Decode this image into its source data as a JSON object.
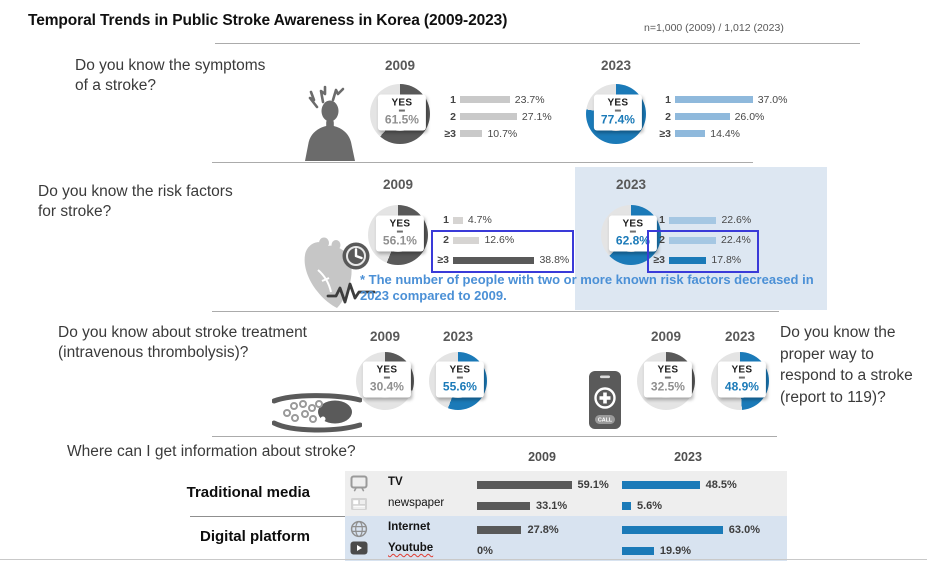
{
  "page": {
    "title": "Temporal Trends in Public Stroke Awareness in Korea (2009-2023)",
    "sample_note": "n=1,000 (2009) / 1,012 (2023)"
  },
  "colors": {
    "dark_gray": "#595959",
    "ring_gray": "#e4e4e4",
    "blue": "#1b7ab8",
    "gray_value": "#8f8f8f",
    "light_gray_bar": "#c9c9c9",
    "pale_gray_bar": "#d6d4d2",
    "light_blue_bar": "#8fb9dc",
    "pale_blue_bar": "#a5c7e3",
    "panel_blue": "#dde7f2",
    "panel_gray": "#eeeeee",
    "digital_panel_blue": "#d8e3f0",
    "note_blue": "#4b90d6",
    "highlight_border": "#3a3ad8"
  },
  "sections": {
    "symptoms": {
      "question": "Do you know the symptoms\nof a stroke?",
      "icon": "headache-person-icon",
      "groups": [
        {
          "year": "2009",
          "theme": "gray",
          "yes_label": "YES",
          "yes_value": "61.5%",
          "yes_pct": 61.5,
          "bars": [
            {
              "label": "1",
              "value": "23.7%",
              "pct": 23.7,
              "color": "#c9c9c9"
            },
            {
              "label": "2",
              "value": "27.1%",
              "pct": 27.1,
              "color": "#c9c9c9"
            },
            {
              "label": "≥3",
              "value": "10.7%",
              "pct": 10.7,
              "color": "#c9c9c9"
            }
          ]
        },
        {
          "year": "2023",
          "theme": "blue",
          "yes_label": "YES",
          "yes_value": "77.4%",
          "yes_pct": 77.4,
          "bars": [
            {
              "label": "1",
              "value": "37.0%",
              "pct": 37.0,
              "color": "#8fb9dc"
            },
            {
              "label": "2",
              "value": "26.0%",
              "pct": 26.0,
              "color": "#8fb9dc"
            },
            {
              "label": "≥3",
              "value": "14.4%",
              "pct": 14.4,
              "color": "#8fb9dc"
            }
          ]
        }
      ]
    },
    "risk_factors": {
      "question": "Do you know the risk factors\nfor stroke?",
      "icon": "heart-clock-icon",
      "note": "* The number of people with two or more known risk factors decreased in\n2023 compared to 2009.",
      "groups": [
        {
          "year": "2009",
          "theme": "gray",
          "yes_label": "YES",
          "yes_value": "56.1%",
          "yes_pct": 56.1,
          "bars": [
            {
              "label": "1",
              "value": "4.7%",
              "pct": 4.7,
              "color": "#d6d4d2"
            },
            {
              "label": "2",
              "value": "12.6%",
              "pct": 12.6,
              "color": "#d6d4d2"
            },
            {
              "label": "≥3",
              "value": "38.8%",
              "pct": 38.8,
              "color": "#595959"
            }
          ]
        },
        {
          "year": "2023",
          "theme": "blue",
          "yes_label": "YES",
          "yes_value": "62.8%",
          "yes_pct": 62.8,
          "bars": [
            {
              "label": "1",
              "value": "22.6%",
              "pct": 22.6,
              "color": "#a5c7e3"
            },
            {
              "label": "2",
              "value": "22.4%",
              "pct": 22.4,
              "color": "#a5c7e3"
            },
            {
              "label": "≥3",
              "value": "17.8%",
              "pct": 17.8,
              "color": "#1b7ab8"
            }
          ]
        }
      ]
    },
    "treatment": {
      "question": "Do you know about stroke treatment\n(intravenous thrombolysis)?",
      "icon": "blood-vessel-clot-icon",
      "donuts": [
        {
          "year": "2009",
          "theme": "gray",
          "yes_label": "YES",
          "yes_value": "30.4%",
          "yes_pct": 30.4
        },
        {
          "year": "2023",
          "theme": "blue",
          "yes_label": "YES",
          "yes_value": "55.6%",
          "yes_pct": 55.6
        }
      ]
    },
    "response": {
      "question": "Do you know the proper way to respond to a stroke (report to 119)?",
      "icon": "emergency-call-phone-icon",
      "donuts": [
        {
          "year": "2009",
          "theme": "gray",
          "yes_label": "YES",
          "yes_value": "32.5%",
          "yes_pct": 32.5
        },
        {
          "year": "2023",
          "theme": "blue",
          "yes_label": "YES",
          "yes_value": "48.9%",
          "yes_pct": 48.9
        }
      ]
    },
    "information": {
      "question": "Where can I get information about stroke?",
      "col_years": [
        "2009",
        "2023"
      ],
      "categories": [
        {
          "group": "Traditional media",
          "rows": [
            {
              "icon": "tv-icon",
              "label": "TV",
              "bold": true,
              "squiggle": false,
              "y2009": {
                "value": "59.1%",
                "pct": 59.1
              },
              "y2023": {
                "value": "48.5%",
                "pct": 48.5
              }
            },
            {
              "icon": "newspaper-icon",
              "label": "newspaper",
              "bold": false,
              "squiggle": false,
              "y2009": {
                "value": "33.1%",
                "pct": 33.1
              },
              "y2023": {
                "value": "5.6%",
                "pct": 5.6
              }
            }
          ]
        },
        {
          "group": "Digital platform",
          "rows": [
            {
              "icon": "globe-icon",
              "label": "Internet",
              "bold": true,
              "squiggle": false,
              "y2009": {
                "value": "27.8%",
                "pct": 27.8
              },
              "y2023": {
                "value": "63.0%",
                "pct": 63.0
              }
            },
            {
              "icon": "youtube-icon",
              "label": "Youtube",
              "bold": true,
              "squiggle": true,
              "y2009": {
                "value": "0%",
                "pct": 0
              },
              "y2023": {
                "value": "19.9%",
                "pct": 19.9
              }
            }
          ]
        }
      ]
    }
  },
  "chart_data": [
    {
      "type": "pie",
      "title": "Do you know the symptoms of a stroke? (YES %)",
      "categories": [
        "2009",
        "2023"
      ],
      "values": [
        61.5,
        77.4
      ]
    },
    {
      "type": "bar",
      "title": "Number of known stroke symptoms (%)",
      "categories": [
        "1",
        "2",
        "≥3"
      ],
      "series": [
        {
          "name": "2009",
          "values": [
            23.7,
            27.1,
            10.7
          ]
        },
        {
          "name": "2023",
          "values": [
            37.0,
            26.0,
            14.4
          ]
        }
      ]
    },
    {
      "type": "pie",
      "title": "Do you know the risk factors for stroke? (YES %)",
      "categories": [
        "2009",
        "2023"
      ],
      "values": [
        56.1,
        62.8
      ]
    },
    {
      "type": "bar",
      "title": "Number of known stroke risk factors (%)",
      "categories": [
        "1",
        "2",
        "≥3"
      ],
      "series": [
        {
          "name": "2009",
          "values": [
            4.7,
            12.6,
            38.8
          ]
        },
        {
          "name": "2023",
          "values": [
            22.6,
            22.4,
            17.8
          ]
        }
      ]
    },
    {
      "type": "pie",
      "title": "Do you know about stroke treatment (intravenous thrombolysis)? (YES %)",
      "categories": [
        "2009",
        "2023"
      ],
      "values": [
        30.4,
        55.6
      ]
    },
    {
      "type": "pie",
      "title": "Do you know the proper way to respond to a stroke (report to 119)? (YES %)",
      "categories": [
        "2009",
        "2023"
      ],
      "values": [
        32.5,
        48.9
      ]
    },
    {
      "type": "bar",
      "title": "Where can I get information about stroke? (%)",
      "categories": [
        "TV",
        "newspaper",
        "Internet",
        "Youtube"
      ],
      "series": [
        {
          "name": "2009",
          "values": [
            59.1,
            33.1,
            27.8,
            0
          ]
        },
        {
          "name": "2023",
          "values": [
            48.5,
            5.6,
            63.0,
            19.9
          ]
        }
      ]
    }
  ]
}
